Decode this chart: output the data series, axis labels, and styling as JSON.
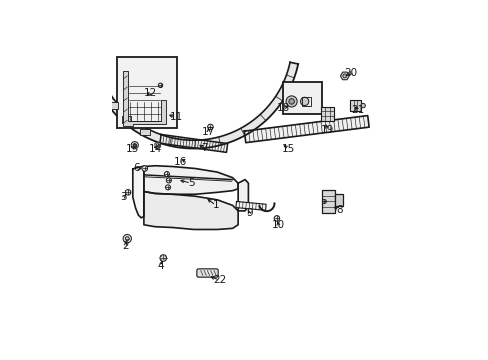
{
  "bg_color": "#ffffff",
  "fig_width": 4.89,
  "fig_height": 3.6,
  "dpi": 100,
  "line_color": "#1a1a1a",
  "label_fontsize": 7.5,
  "line_width": 0.9,
  "annotations": [
    [
      1,
      0.375,
      0.415,
      0.335,
      0.445
    ],
    [
      2,
      0.048,
      0.268,
      0.055,
      0.295
    ],
    [
      3,
      0.042,
      0.445,
      0.058,
      0.462
    ],
    [
      4,
      0.175,
      0.195,
      0.185,
      0.225
    ],
    [
      5,
      0.285,
      0.495,
      0.235,
      0.508
    ],
    [
      6,
      0.09,
      0.548,
      0.118,
      0.548
    ],
    [
      7,
      0.335,
      0.622,
      0.305,
      0.638
    ],
    [
      8,
      0.82,
      0.398,
      0.79,
      0.415
    ],
    [
      9,
      0.495,
      0.388,
      0.488,
      0.408
    ],
    [
      10,
      0.6,
      0.345,
      0.595,
      0.368
    ],
    [
      11,
      0.232,
      0.732,
      0.195,
      0.745
    ],
    [
      12,
      0.138,
      0.82,
      0.125,
      0.81
    ],
    [
      13,
      0.072,
      0.618,
      0.082,
      0.632
    ],
    [
      14,
      0.155,
      0.618,
      0.165,
      0.632
    ],
    [
      15,
      0.638,
      0.618,
      0.61,
      0.638
    ],
    [
      16,
      0.248,
      0.572,
      0.275,
      0.588
    ],
    [
      17,
      0.348,
      0.678,
      0.348,
      0.695
    ],
    [
      18,
      0.618,
      0.768,
      0.648,
      0.775
    ],
    [
      19,
      0.778,
      0.688,
      0.768,
      0.718
    ],
    [
      20,
      0.862,
      0.892,
      0.845,
      0.878
    ],
    [
      21,
      0.888,
      0.758,
      0.875,
      0.772
    ],
    [
      22,
      0.388,
      0.145,
      0.345,
      0.162
    ]
  ]
}
